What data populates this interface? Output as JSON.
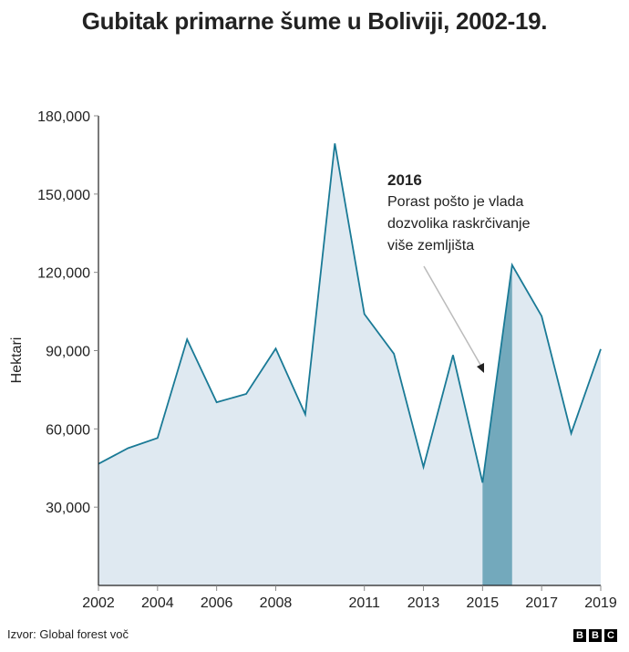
{
  "header": {
    "title": "Gubitak primarne šume u Boliviji, 2002-19."
  },
  "chart_data": {
    "type": "area",
    "title": "Gubitak primarne šume u Boliviji, 2002-19.",
    "xlabel": "",
    "ylabel": "Hektari",
    "x": [
      2002,
      2003,
      2004,
      2005,
      2006,
      2007,
      2008,
      2009,
      2010,
      2011,
      2012,
      2013,
      2014,
      2015,
      2016,
      2017,
      2018,
      2019
    ],
    "values": [
      46600,
      52600,
      56500,
      94300,
      70200,
      73400,
      90800,
      65600,
      169400,
      104000,
      88800,
      45400,
      88300,
      39400,
      122800,
      103200,
      58300,
      90600
    ],
    "ylim": [
      0,
      180000
    ],
    "xlim": [
      2002,
      2019
    ],
    "yticks": [
      30000,
      60000,
      90000,
      120000,
      150000,
      180000
    ],
    "ytick_labels": [
      "30,000",
      "60,000",
      "90,000",
      "120,000",
      "150,000",
      "180,000"
    ],
    "xticks": [
      2002,
      2004,
      2006,
      2008,
      2011,
      2013,
      2015,
      2017,
      2019
    ],
    "xtick_labels": [
      "2002",
      "2004",
      "2006",
      "2008",
      "2011",
      "2013",
      "2015",
      "2017",
      "2019"
    ],
    "grid": false,
    "highlight": {
      "from": 2015,
      "to": 2016
    },
    "annotations": [
      {
        "target_year": 2016,
        "heading": "2016",
        "lines": [
          "Porast pošto je vlada",
          "dozvolika raskrčivanje",
          "više zemljišta"
        ]
      }
    ],
    "colors": {
      "line": "#1a7a96",
      "fill": "#dfe9f1",
      "highlight": "#73a9bc",
      "axis": "#222222",
      "arrow": "#bbbbbb"
    }
  },
  "footer": {
    "source": "Izvor: Global forest voč",
    "logo_letters": [
      "B",
      "B",
      "C"
    ]
  }
}
